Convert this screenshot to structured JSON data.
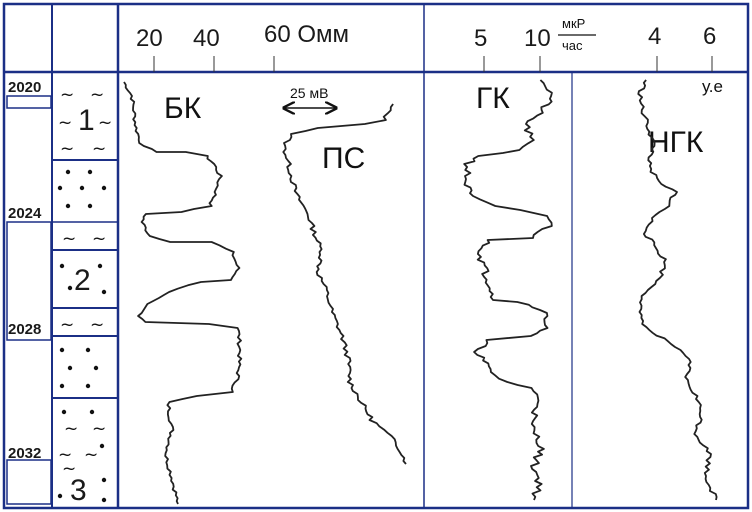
{
  "header": {
    "scale_labels": [
      "20",
      "40",
      "60 Омм",
      "5",
      "10",
      "4",
      "6"
    ],
    "unit_mkr": "мкР",
    "unit_hour": "час",
    "unit_ue": "у.е"
  },
  "depth_marks": [
    "2020",
    "2024",
    "2028",
    "2032"
  ],
  "curves": {
    "bk": {
      "label": "БК"
    },
    "ps": {
      "label": "ПС",
      "scale_bar": "25 мВ"
    },
    "gk": {
      "label": "ГК"
    },
    "ngk": {
      "label": "НГК"
    }
  },
  "layers": [
    "1",
    "2",
    "3"
  ],
  "colors": {
    "frame": "#1b2f86",
    "curve": "#222222"
  }
}
